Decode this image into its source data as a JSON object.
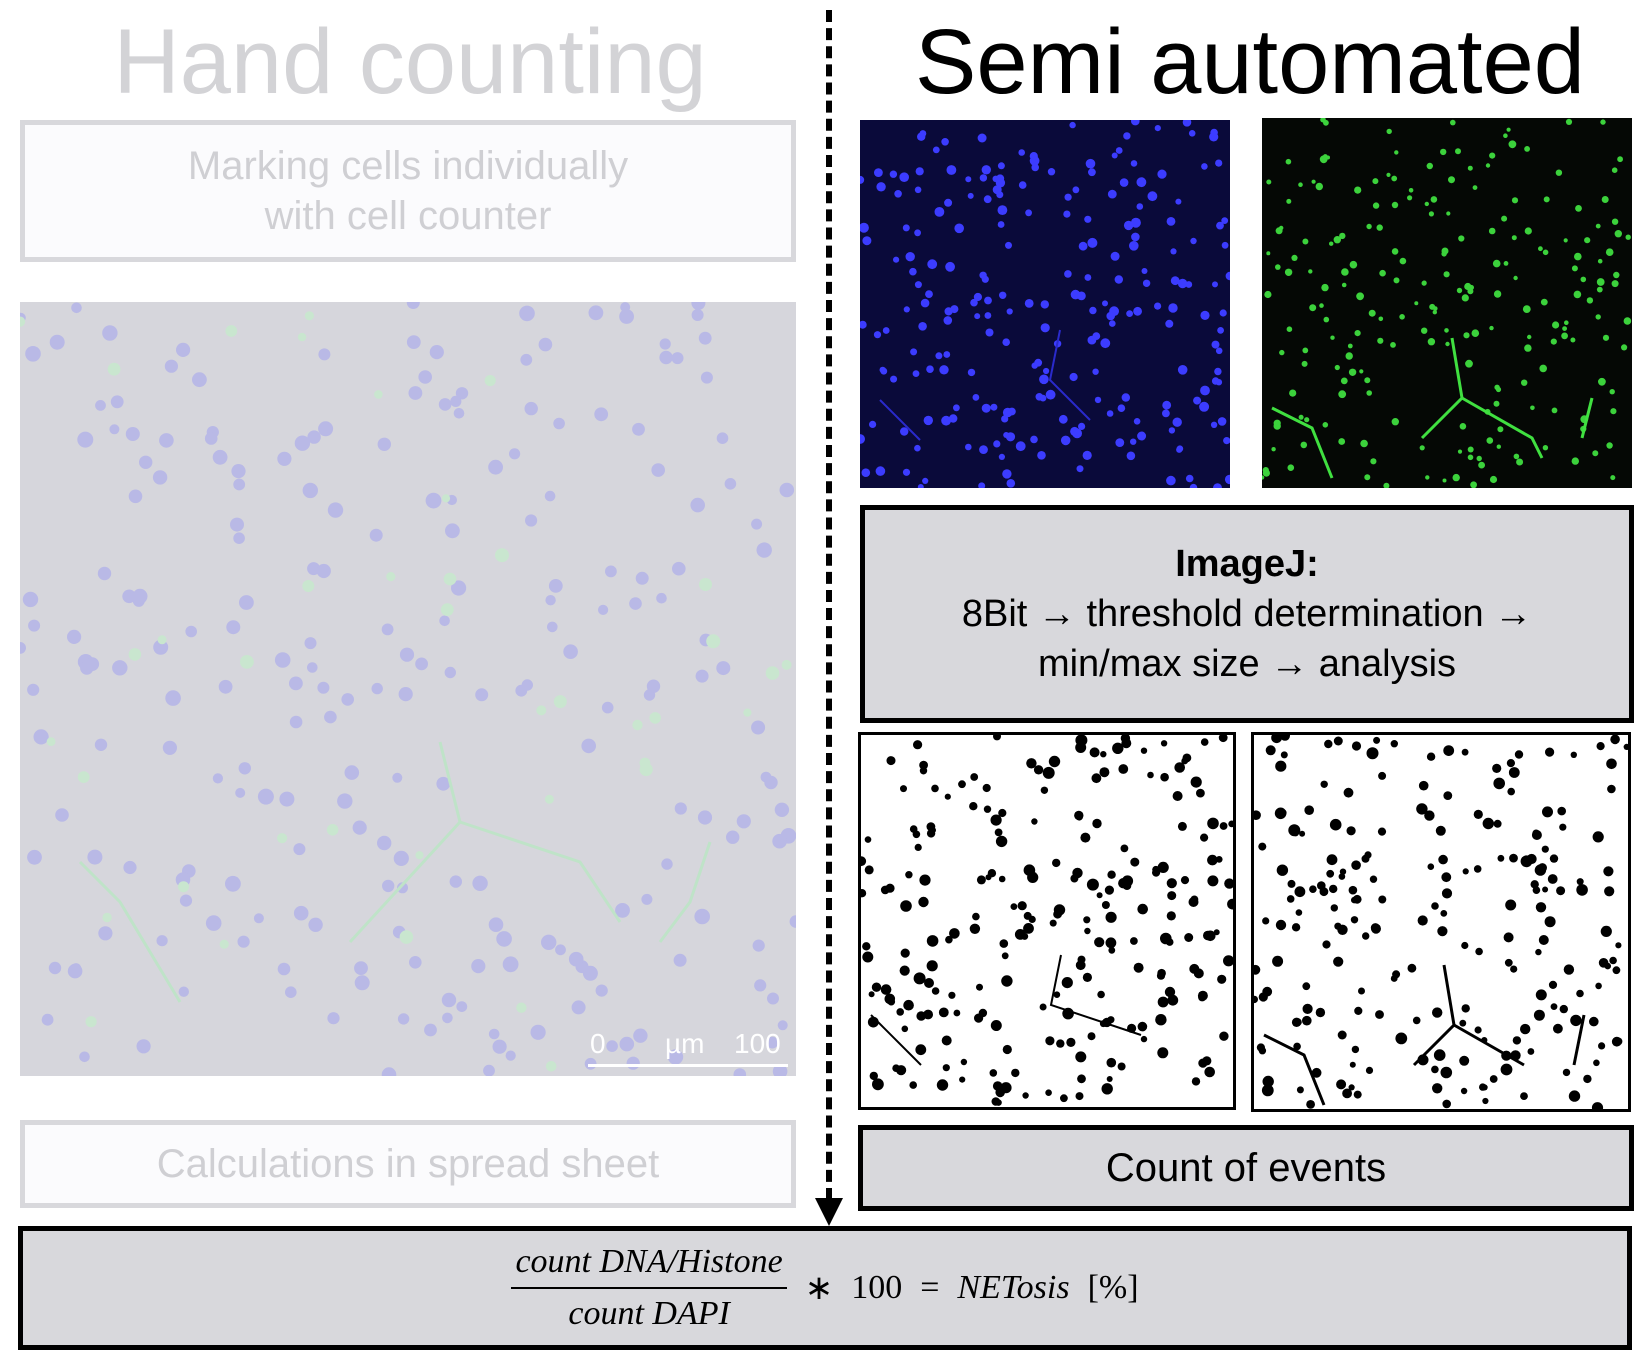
{
  "left": {
    "title": "Hand counting",
    "marking_line1": "Marking cells individually",
    "marking_line2": "with cell counter",
    "scalebar": {
      "start": "0",
      "unit": "µm",
      "end": "100"
    },
    "calc_label": "Calculations in spread sheet"
  },
  "right": {
    "title": "Semi automated",
    "imagej_title": "ImageJ:",
    "imagej_line1": "8Bit → threshold determination →",
    "imagej_line2": "min/max size → analysis",
    "count_label": "Count of events"
  },
  "formula": {
    "numerator": "count DNA/Histone",
    "denominator": "count DAPI",
    "times": "∗",
    "hundred": "100",
    "equals": "=",
    "result": "NETosis",
    "unit": "[%]"
  },
  "colors": {
    "dapi_background": "#0a0a3a",
    "dapi_cell": "#3c3cff",
    "histone_background": "#050805",
    "histone_cell": "#3cd23c",
    "faded_panel": "#d6d6dc",
    "box_fill": "#d8d8dc"
  }
}
